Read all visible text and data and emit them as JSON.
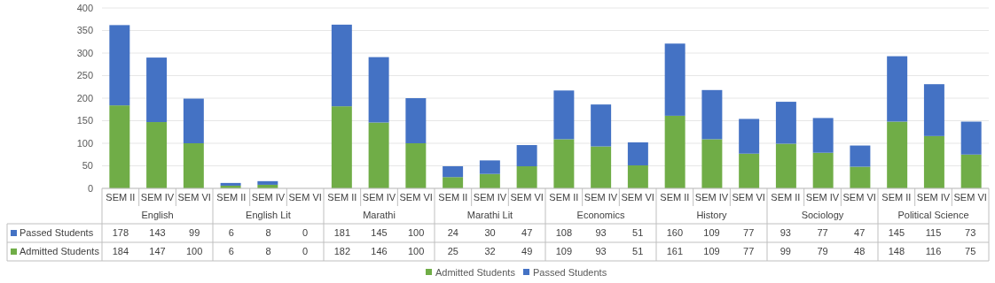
{
  "chart_data": {
    "type": "bar",
    "stacked": true,
    "categories": [
      "SEM II",
      "SEM IV",
      "SEM VI",
      "SEM II",
      "SEM IV",
      "SEM VI",
      "SEM II",
      "SEM IV",
      "SEM VI",
      "SEM II",
      "SEM IV",
      "SEM VI",
      "SEM II",
      "SEM IV",
      "SEM VI",
      "SEM II",
      "SEM IV",
      "SEM VI",
      "SEM II",
      "SEM IV",
      "SEM VI",
      "SEM II",
      "SEM IV",
      "SEM VI"
    ],
    "series": [
      {
        "name": "Admitted Students",
        "color": "#70ad47",
        "values": [
          184,
          147,
          100,
          6,
          8,
          0,
          182,
          146,
          100,
          25,
          32,
          49,
          109,
          93,
          51,
          161,
          109,
          77,
          99,
          79,
          48,
          148,
          116,
          75
        ]
      },
      {
        "name": "Passed Students",
        "color": "#4472c4",
        "values": [
          178,
          143,
          99,
          6,
          8,
          0,
          181,
          145,
          100,
          24,
          30,
          47,
          108,
          93,
          51,
          160,
          109,
          77,
          93,
          77,
          47,
          145,
          115,
          73
        ]
      }
    ],
    "annotations": [
      "English",
      "English Lit",
      "Marathi",
      "Marathi Lit",
      "Economics",
      "History",
      "Sociology",
      "Political Science"
    ],
    "ylim": [
      0,
      400
    ],
    "yticks": [
      0,
      50,
      100,
      150,
      200,
      250,
      300,
      350,
      400
    ],
    "grid": "y",
    "data_labels": true,
    "legend": "bottom"
  }
}
